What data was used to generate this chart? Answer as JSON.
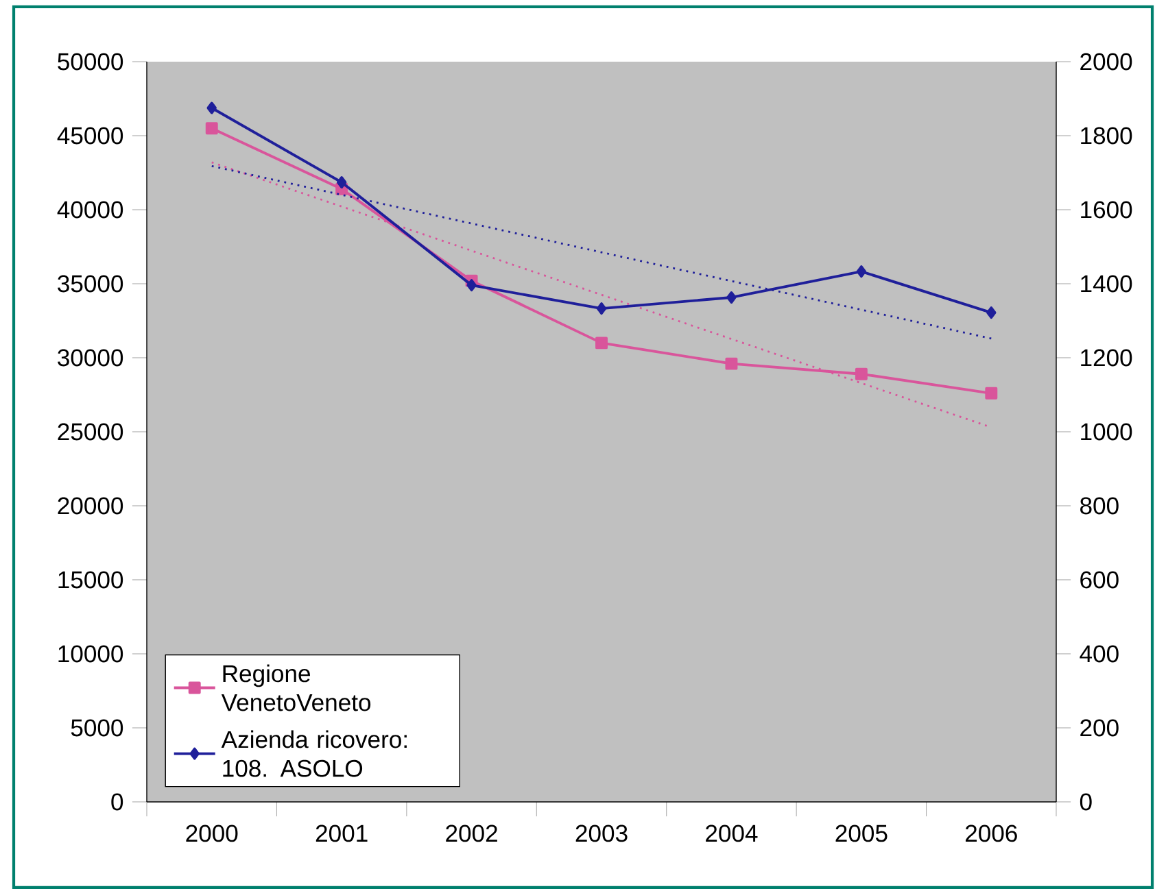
{
  "chart_data": {
    "type": "line",
    "categories": [
      "2000",
      "2001",
      "2002",
      "2003",
      "2004",
      "2005",
      "2006"
    ],
    "series": [
      {
        "name": "Regione VenetoVeneto",
        "color": "#d9559b",
        "values": [
          45500,
          41400,
          35200,
          31000,
          29600,
          28900,
          27600
        ],
        "marker": "square",
        "line_style": "solid"
      },
      {
        "name": "Azienda ricovero: 108. ASOLO",
        "color": "#1f1f9a",
        "values": [
          1875,
          1674,
          1396,
          1333,
          1363,
          1433,
          1322
        ],
        "marker": "diamond",
        "line_style": "solid",
        "axis": "y2"
      },
      {
        "color": "#d9559b",
        "values": [
          43200,
          null,
          null,
          null,
          null,
          null,
          25300
        ],
        "marker": "none",
        "line_style": "dotted"
      },
      {
        "color": "#1f1f9a",
        "values": [
          1718,
          null,
          null,
          null,
          null,
          null,
          1252
        ],
        "marker": "none",
        "line_style": "dotted",
        "axis": "y2"
      }
    ],
    "ylim": [
      0,
      50000
    ],
    "yticks": [
      0,
      5000,
      10000,
      15000,
      20000,
      25000,
      30000,
      35000,
      40000,
      45000,
      50000
    ],
    "y2lim": [
      0,
      2000
    ],
    "y2ticks": [
      0,
      200,
      400,
      600,
      800,
      1000,
      1200,
      1400,
      1600,
      1800,
      2000
    ],
    "legend": "bottom left",
    "grid": false
  }
}
